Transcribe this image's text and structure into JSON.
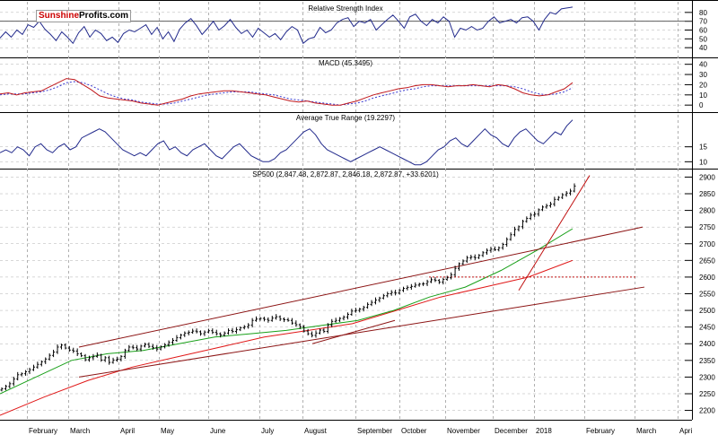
{
  "logo": {
    "part1": "Sunshine",
    "part2": "Profits.com"
  },
  "colors": {
    "price": "#000000",
    "rsi": "#222a8c",
    "macd": "#c0181c",
    "signal": "#3a3ad0",
    "ma_green": "#19a019",
    "ma_red": "#e01818",
    "trend": "#8c1414",
    "resistance": "#c01010",
    "grid": "#b0b0b0"
  },
  "chart_data": [
    {
      "type": "line",
      "title": "Relative Strength Index",
      "ylim": [
        30,
        90
      ],
      "yticks": [
        80,
        70,
        60,
        50,
        40
      ],
      "reference_line": 70,
      "series": [
        {
          "name": "RSI",
          "values": [
            51,
            58,
            52,
            60,
            55,
            66,
            63,
            70,
            61,
            55,
            48,
            58,
            52,
            45,
            57,
            64,
            52,
            60,
            56,
            48,
            52,
            46,
            56,
            60,
            58,
            62,
            66,
            55,
            63,
            50,
            58,
            47,
            61,
            68,
            73,
            65,
            55,
            62,
            70,
            60,
            65,
            72,
            63,
            56,
            60,
            52,
            62,
            57,
            52,
            56,
            49,
            58,
            64,
            60,
            45,
            50,
            52,
            63,
            57,
            60,
            68,
            72,
            74,
            64,
            70,
            68,
            72,
            60,
            66,
            72,
            77,
            70,
            62,
            75,
            78,
            70,
            65,
            72,
            68,
            75,
            70,
            52,
            62,
            60,
            64,
            60,
            62,
            70,
            75,
            68,
            70,
            72,
            68,
            74,
            75,
            70,
            60,
            72,
            80,
            78,
            84,
            85,
            86
          ]
        }
      ]
    },
    {
      "type": "line",
      "title": "MACD (45.3495)",
      "ylim": [
        -6,
        45
      ],
      "yticks": [
        40,
        30,
        20,
        10,
        0
      ],
      "series": [
        {
          "name": "MACD",
          "values": [
            11,
            12,
            10,
            12,
            13,
            14,
            18,
            22,
            26,
            25,
            20,
            15,
            9,
            7,
            6,
            5,
            4,
            2,
            1,
            0,
            2,
            4,
            6,
            9,
            11,
            12,
            13,
            14,
            14,
            13,
            12,
            11,
            10,
            8,
            6,
            4,
            3,
            4,
            2,
            1,
            0,
            0,
            2,
            4,
            7,
            10,
            12,
            14,
            16,
            17,
            19,
            20,
            20,
            19,
            18,
            19,
            19,
            20,
            19,
            18,
            20,
            19,
            16,
            12,
            10,
            9,
            10,
            13,
            16,
            22
          ]
        },
        {
          "name": "Signal",
          "values": [
            10,
            11,
            11,
            11,
            12,
            13,
            15,
            18,
            22,
            23,
            22,
            19,
            15,
            11,
            8,
            6,
            5,
            3,
            2,
            1,
            1,
            2,
            4,
            6,
            8,
            10,
            11,
            12,
            13,
            13,
            13,
            12,
            11,
            10,
            8,
            6,
            5,
            4,
            3,
            2,
            1,
            0,
            1,
            2,
            4,
            7,
            9,
            11,
            13,
            15,
            16,
            18,
            19,
            19,
            19,
            19,
            19,
            19,
            19,
            19,
            19,
            19,
            18,
            16,
            13,
            11,
            10,
            11,
            13,
            17
          ]
        }
      ]
    },
    {
      "type": "line",
      "title": "Average True Range (19.2297)",
      "ylim": [
        8,
        26
      ],
      "yticks": [
        15,
        10
      ],
      "series": [
        {
          "name": "ATR",
          "values": [
            13,
            14,
            13,
            15,
            14,
            12,
            15,
            16,
            14,
            13,
            15,
            16,
            14,
            15,
            18,
            19,
            20,
            21,
            20,
            18,
            16,
            14,
            13,
            12,
            13,
            12,
            14,
            16,
            17,
            14,
            15,
            13,
            12,
            14,
            15,
            16,
            14,
            12,
            11,
            13,
            15,
            16,
            14,
            12,
            11,
            10,
            10,
            11,
            13,
            14,
            16,
            18,
            20,
            21,
            19,
            16,
            14,
            13,
            12,
            11,
            10,
            11,
            12,
            13,
            14,
            15,
            14,
            13,
            12,
            11,
            10,
            9,
            9,
            10,
            12,
            14,
            15,
            17,
            18,
            16,
            15,
            17,
            19,
            21,
            19,
            18,
            16,
            15,
            18,
            20,
            21,
            19,
            17,
            16,
            18,
            20,
            19,
            22,
            24
          ]
        }
      ]
    },
    {
      "type": "candlestick",
      "title": "SP500 (2,847.48, 2,872.87, 2,846.18, 2,872.87, +33.6201)",
      "ylim": [
        2180,
        2920
      ],
      "yticks": [
        2900,
        2850,
        2800,
        2750,
        2700,
        2650,
        2600,
        2550,
        2500,
        2450,
        2400,
        2350,
        2300,
        2250,
        2200
      ],
      "x_labels": [
        "February",
        "March",
        "April",
        "May",
        "June",
        "July",
        "August",
        "September",
        "October",
        "November",
        "December",
        "2018",
        "February",
        "March",
        "Apri"
      ],
      "close": [
        2265,
        2272,
        2280,
        2294,
        2307,
        2310,
        2316,
        2322,
        2330,
        2338,
        2346,
        2354,
        2365,
        2375,
        2390,
        2396,
        2387,
        2381,
        2378,
        2370,
        2364,
        2352,
        2358,
        2362,
        2366,
        2351,
        2358,
        2344,
        2351,
        2353,
        2362,
        2380,
        2390,
        2388,
        2384,
        2393,
        2398,
        2392,
        2388,
        2384,
        2391,
        2397,
        2404,
        2410,
        2418,
        2426,
        2432,
        2434,
        2438,
        2436,
        2430,
        2435,
        2439,
        2434,
        2430,
        2426,
        2432,
        2440,
        2437,
        2442,
        2448,
        2451,
        2456,
        2470,
        2474,
        2476,
        2473,
        2470,
        2477,
        2481,
        2474,
        2472,
        2470,
        2462,
        2457,
        2451,
        2438,
        2430,
        2425,
        2432,
        2441,
        2437,
        2456,
        2467,
        2470,
        2476,
        2480,
        2488,
        2498,
        2500,
        2504,
        2509,
        2518,
        2524,
        2531,
        2537,
        2544,
        2550,
        2554,
        2552,
        2560,
        2566,
        2569,
        2572,
        2576,
        2579,
        2580,
        2586,
        2592,
        2590,
        2585,
        2593,
        2598,
        2607,
        2626,
        2640,
        2648,
        2658,
        2660,
        2658,
        2665,
        2673,
        2680,
        2684,
        2682,
        2688,
        2698,
        2713,
        2727,
        2743,
        2751,
        2767,
        2776,
        2786,
        2789,
        2802,
        2810,
        2814,
        2819,
        2833,
        2839,
        2847,
        2852,
        2858,
        2873
      ],
      "moving_average_green": [
        2250,
        2300,
        2350,
        2370,
        2380,
        2400,
        2420,
        2430,
        2440,
        2455,
        2470,
        2500,
        2540,
        2570,
        2620,
        2680,
        2745
      ],
      "moving_average_red": [
        2185,
        2240,
        2290,
        2330,
        2360,
        2390,
        2420,
        2440,
        2460,
        2500,
        2540,
        2570,
        2600,
        2650
      ],
      "trendline_upper": [
        2390,
        2750
      ],
      "trendline_lower": [
        2305,
        2570
      ],
      "trendline_steep": [
        2560,
        2905
      ],
      "resistance_level": 2600
    }
  ]
}
